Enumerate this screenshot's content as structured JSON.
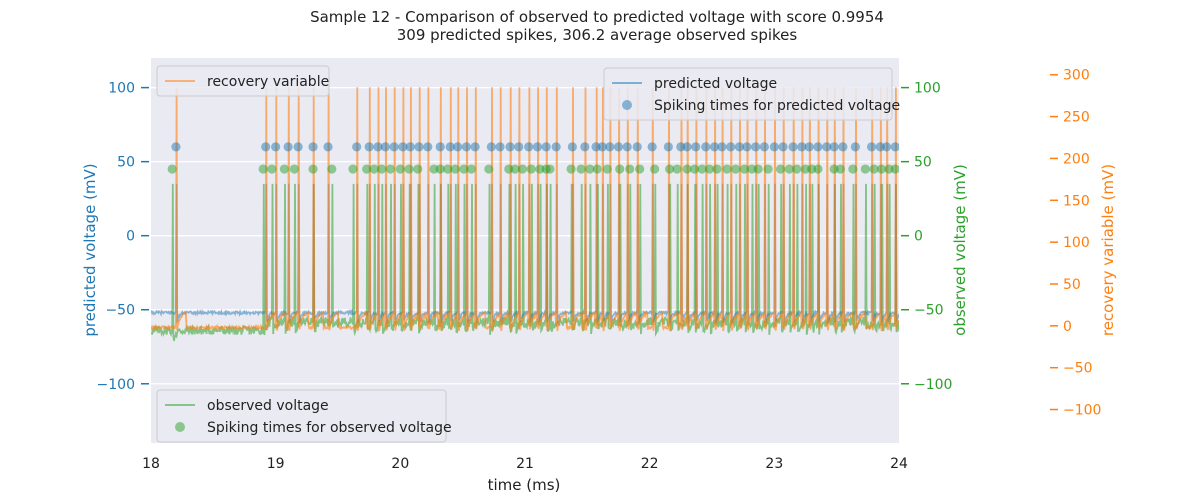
{
  "chart_data": {
    "type": "line",
    "title": "Sample 12 - Comparison of observed to predicted voltage with score 0.9954",
    "subtitle": "309 predicted spikes, 306.2 average observed spikes",
    "xlabel": "time (ms)",
    "xlim": [
      18,
      24
    ],
    "x_ticks": [
      18,
      19,
      20,
      21,
      22,
      23,
      24
    ],
    "grid": true,
    "axes": {
      "left": {
        "label": "predicted voltage (mV)",
        "ylim": [
          -140,
          120
        ],
        "ticks": [
          -100,
          -50,
          0,
          50,
          100
        ],
        "tick_labels": [
          "−100",
          "−50",
          "0",
          "50",
          "100"
        ],
        "color": "#1f77b4"
      },
      "right": {
        "label": "observed voltage (mV)",
        "ylim": [
          -140,
          120
        ],
        "ticks": [
          -100,
          -50,
          0,
          50,
          100
        ],
        "tick_labels": [
          "−100",
          "−50",
          "0",
          "50",
          "100"
        ],
        "color": "#2ca02c"
      },
      "far_right": {
        "label": "recovery variable (mV)",
        "ylim": [
          -140,
          320
        ],
        "ticks": [
          -100,
          -50,
          0,
          50,
          100,
          150,
          200,
          250,
          300
        ],
        "tick_labels": [
          "−100",
          "−50",
          "0",
          "50",
          "100",
          "150",
          "200",
          "250",
          "300"
        ],
        "color": "#ff7f0e"
      }
    },
    "legends": [
      {
        "placement": "top-left",
        "entries": [
          {
            "label": "recovery variable",
            "marker": "line",
            "color": "#ff7f0e"
          }
        ]
      },
      {
        "placement": "top-right",
        "entries": [
          {
            "label": "predicted voltage",
            "marker": "line",
            "color": "#1f77b4"
          },
          {
            "label": "Spiking times for predicted voltage",
            "marker": "dot",
            "color": "#1f77b4"
          }
        ]
      },
      {
        "placement": "bottom-left",
        "entries": [
          {
            "label": "observed voltage",
            "marker": "line",
            "color": "#2ca02c"
          },
          {
            "label": "Spiking times for observed voltage",
            "marker": "dot",
            "color": "#2ca02c"
          }
        ]
      }
    ],
    "series": [
      {
        "name": "predicted voltage",
        "axis": "left",
        "color": "#1f77b4",
        "kind": "line",
        "baseline_mv": -52,
        "peak_mv": 35
      },
      {
        "name": "Spiking times for predicted voltage",
        "axis": "left",
        "color": "#1f77b4",
        "kind": "markers",
        "y_mv": 60,
        "x": [
          18.2,
          18.92,
          19.0,
          19.1,
          19.18,
          19.3,
          19.42,
          19.65,
          19.75,
          19.82,
          19.88,
          19.95,
          20.02,
          20.08,
          20.15,
          20.22,
          20.32,
          20.4,
          20.46,
          20.53,
          20.6,
          20.73,
          20.8,
          20.88,
          20.95,
          21.03,
          21.1,
          21.17,
          21.25,
          21.38,
          21.48,
          21.57,
          21.62,
          21.68,
          21.75,
          21.82,
          21.9,
          22.02,
          22.15,
          22.25,
          22.3,
          22.37,
          22.45,
          22.52,
          22.58,
          22.65,
          22.72,
          22.78,
          22.85,
          22.92,
          23.0,
          23.07,
          23.15,
          23.22,
          23.28,
          23.35,
          23.42,
          23.48,
          23.55,
          23.65,
          23.78,
          23.85,
          23.9,
          23.97
        ]
      },
      {
        "name": "observed voltage",
        "axis": "right",
        "color": "#2ca02c",
        "kind": "line",
        "baseline_mv": -58,
        "peak_mv": 35
      },
      {
        "name": "Spiking times for observed voltage",
        "axis": "right",
        "color": "#2ca02c",
        "kind": "markers",
        "y_mv": 45,
        "x": [
          18.17,
          18.9,
          18.97,
          19.07,
          19.15,
          19.3,
          19.45,
          19.62,
          19.73,
          19.79,
          19.85,
          19.92,
          20.0,
          20.07,
          20.14,
          20.27,
          20.32,
          20.38,
          20.44,
          20.51,
          20.57,
          20.71,
          20.87,
          20.92,
          20.98,
          21.05,
          21.12,
          21.17,
          21.2,
          21.37,
          21.45,
          21.52,
          21.58,
          21.66,
          21.76,
          21.84,
          21.92,
          22.04,
          22.16,
          22.22,
          22.3,
          22.36,
          22.42,
          22.48,
          22.54,
          22.62,
          22.69,
          22.76,
          22.82,
          22.87,
          22.95,
          23.05,
          23.12,
          23.18,
          23.25,
          23.3,
          23.35,
          23.48,
          23.53,
          23.63,
          23.73,
          23.8,
          23.86,
          23.92,
          23.97
        ]
      },
      {
        "name": "recovery variable",
        "axis": "far_right",
        "color": "#ff7f0e",
        "kind": "line",
        "baseline_mv": -2,
        "peak_mv": 285,
        "trough_mv": -20
      }
    ]
  }
}
